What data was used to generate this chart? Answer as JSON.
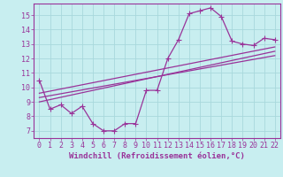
{
  "bg_color": "#c8eef0",
  "grid_color": "#a8d8dc",
  "line_color": "#993399",
  "marker": "+",
  "line_width": 0.9,
  "marker_size": 4,
  "xlabel": "Windchill (Refroidissement éolien,°C)",
  "xlabel_fontsize": 6.5,
  "ylabel_ticks": [
    7,
    8,
    9,
    10,
    11,
    12,
    13,
    14,
    15
  ],
  "xtick_labels": [
    "0",
    "1",
    "2",
    "3",
    "4",
    "5",
    "6",
    "7",
    "8",
    "9",
    "10",
    "11",
    "12",
    "13",
    "14",
    "15",
    "16",
    "17",
    "18",
    "19",
    "20",
    "21",
    "22"
  ],
  "ylim": [
    6.5,
    15.8
  ],
  "xlim": [
    -0.5,
    22.5
  ],
  "curve1_x": [
    0,
    1,
    2,
    3,
    4,
    5,
    6,
    7,
    8,
    9,
    10,
    11,
    12,
    13,
    14,
    15,
    16,
    17,
    18,
    19,
    20,
    21,
    22
  ],
  "curve1_y": [
    10.5,
    8.5,
    8.8,
    8.2,
    8.7,
    7.5,
    7.0,
    7.0,
    7.5,
    7.5,
    9.8,
    9.8,
    12.0,
    13.3,
    15.1,
    15.3,
    15.5,
    14.9,
    13.2,
    13.0,
    12.9,
    13.4,
    13.3
  ],
  "line1_x": [
    0,
    22
  ],
  "line1_y": [
    9.0,
    12.5
  ],
  "line2_x": [
    0,
    22
  ],
  "line2_y": [
    9.3,
    12.2
  ],
  "line3_x": [
    0,
    22
  ],
  "line3_y": [
    9.6,
    12.8
  ],
  "tick_fontsize": 6.0
}
